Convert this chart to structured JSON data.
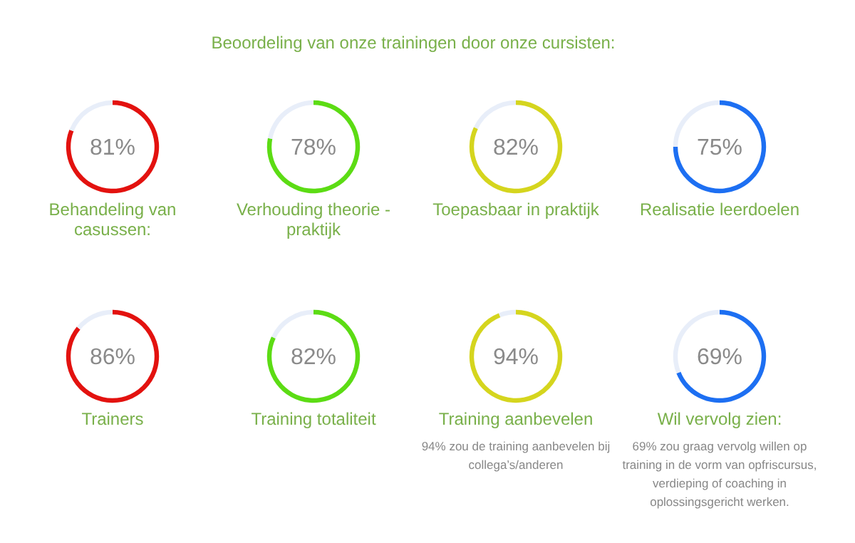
{
  "chart_data": [
    {
      "type": "other",
      "title": "Beoordeling van onze trainingen door onze cursisten:"
    },
    {
      "type": "donut",
      "title": "Behandeling van casussen:",
      "categories": [
        null,
        null
      ],
      "values": [
        81,
        19
      ],
      "colors": [
        "#e3120f",
        "#e8eef9"
      ],
      "value_labels": [
        "81%",
        null
      ]
    },
    {
      "type": "donut",
      "title": "Verhouding theorie - praktijk",
      "categories": [
        null,
        null
      ],
      "values": [
        78,
        22
      ],
      "colors": [
        "#5cdc14",
        "#e8eef9"
      ],
      "value_labels": [
        "78%",
        null
      ]
    },
    {
      "type": "donut",
      "title": "Toepasbaar in praktijk",
      "categories": [
        null,
        null
      ],
      "values": [
        82,
        18
      ],
      "colors": [
        "#d5d51e",
        "#e8eef9"
      ],
      "value_labels": [
        "82%",
        null
      ]
    },
    {
      "type": "donut",
      "title": "Realisatie leerdoelen",
      "categories": [
        null,
        null
      ],
      "values": [
        75,
        25
      ],
      "colors": [
        "#1d6ff2",
        "#e8eef9"
      ],
      "value_labels": [
        "75%",
        null
      ]
    },
    {
      "type": "donut",
      "title": "Trainers",
      "categories": [
        null,
        null
      ],
      "values": [
        86,
        14
      ],
      "colors": [
        "#e3120f",
        "#e8eef9"
      ],
      "value_labels": [
        "86%",
        null
      ]
    },
    {
      "type": "donut",
      "title": "Training totaliteit",
      "categories": [
        null,
        null
      ],
      "values": [
        82,
        18
      ],
      "colors": [
        "#5cdc14",
        "#e8eef9"
      ],
      "value_labels": [
        "82%",
        null
      ]
    },
    {
      "type": "donut",
      "title": "Training aanbevelen",
      "categories": [
        null,
        null
      ],
      "values": [
        94,
        6
      ],
      "colors": [
        "#d5d51e",
        "#e8eef9"
      ],
      "value_labels": [
        "94%",
        null
      ],
      "annotations": [
        "94% zou de training aanbevelen bij collega’s/anderen"
      ]
    },
    {
      "type": "donut",
      "title": "Wil vervolg zien:",
      "categories": [
        null,
        null
      ],
      "values": [
        69,
        31
      ],
      "colors": [
        "#1d6ff2",
        "#e8eef9"
      ],
      "value_labels": [
        "69%",
        null
      ],
      "annotations": [
        "69% zou graag vervolg willen op training in de vorm van opfriscursus, verdieping of coaching in oplossingsgericht werken."
      ]
    }
  ]
}
